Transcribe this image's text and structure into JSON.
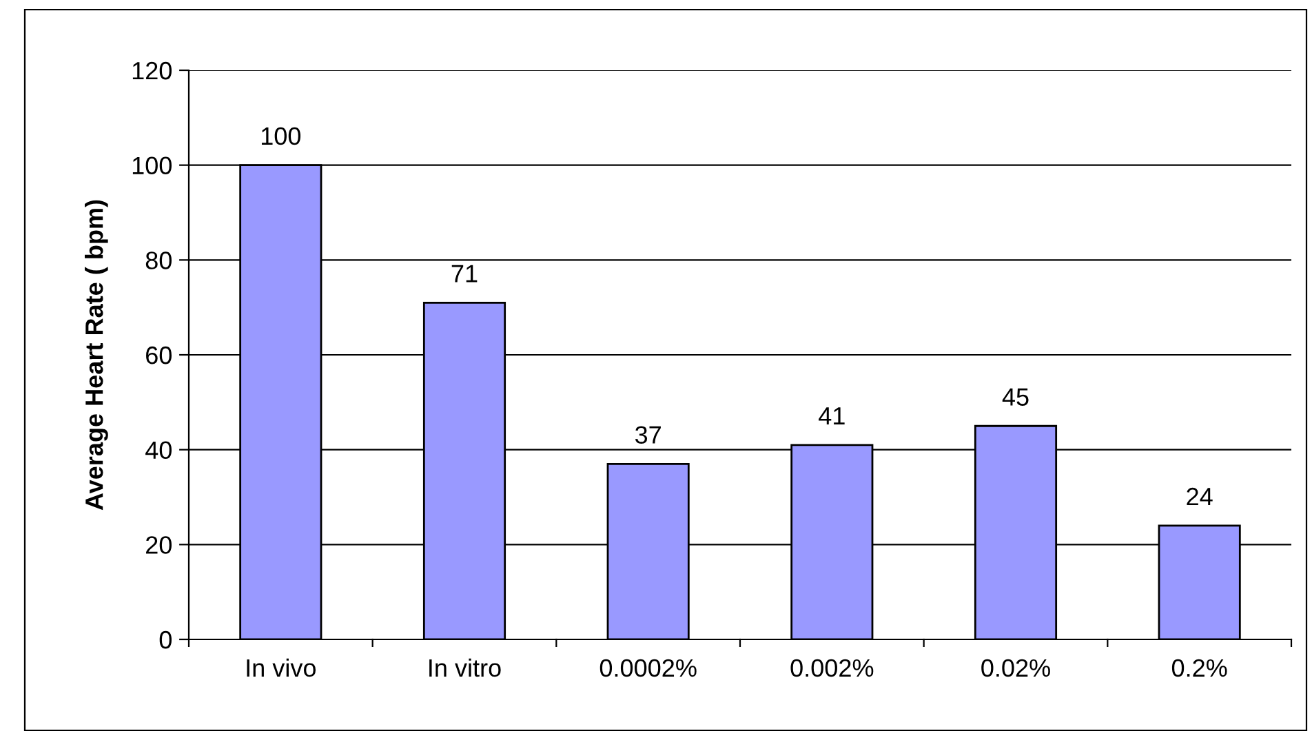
{
  "chart_data": {
    "type": "bar",
    "ylabel": "Average Heart Rate ( bpm)",
    "categories": [
      "In vivo",
      "In vitro",
      "0.0002%",
      "0.002%",
      "0.02%",
      "0.2%"
    ],
    "values": [
      100,
      71,
      37,
      41,
      45,
      24
    ],
    "color": "#9999ff",
    "ylim": [
      0,
      120
    ],
    "yticks": [
      0,
      20,
      40,
      60,
      80,
      100,
      120
    ],
    "grid": "y",
    "data_labels": true,
    "legend": false
  }
}
